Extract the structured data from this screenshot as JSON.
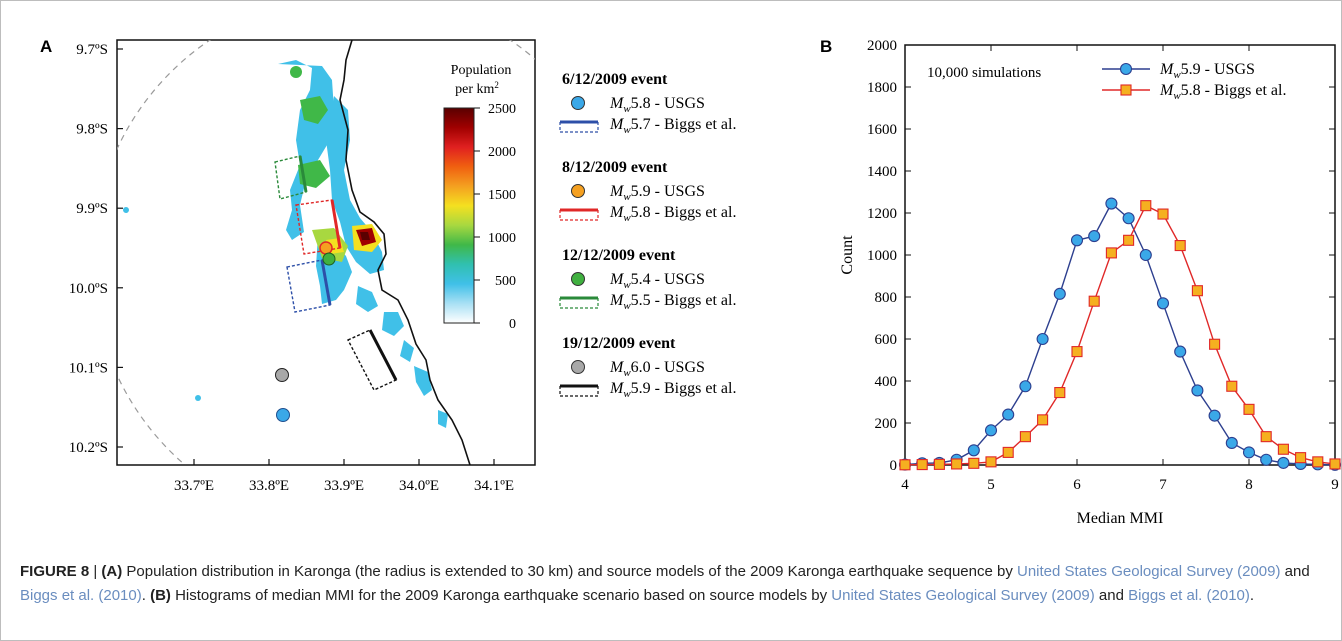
{
  "panel_a": {
    "label": "A",
    "lat_ticks": [
      "9.7ºS",
      "9.8ºS",
      "9.9ºS",
      "10.0ºS",
      "10.1ºS",
      "10.2ºS"
    ],
    "lon_ticks": [
      "33.7ºE",
      "33.8ºE",
      "33.9ºE",
      "34.0ºE",
      "34.1ºE"
    ],
    "colorbar": {
      "title_line1": "Population",
      "title_line2": "per km",
      "title_sup": "2",
      "ticks": [
        "2500",
        "2000",
        "1500",
        "1000",
        "500",
        "0"
      ],
      "colors": [
        "#5a0000",
        "#a00000",
        "#e02020",
        "#f06010",
        "#f4a020",
        "#f4e020",
        "#a8d840",
        "#40b848",
        "#30c0b0",
        "#40c0e8",
        "#a8e0f4",
        "#ffffff"
      ]
    },
    "events": [
      {
        "title": "6/12/2009 event",
        "usgs_mag": "5.8",
        "usgs_src": " - USGS",
        "biggs_mag": "5.7",
        "biggs_src": " - Biggs et al.",
        "dot_color": "#3aa8e8",
        "line_color": "#2d4fa8"
      },
      {
        "title": "8/12/2009 event",
        "usgs_mag": "5.9",
        "usgs_src": " - USGS",
        "biggs_mag": "5.8",
        "biggs_src": " - Biggs et al.",
        "dot_color": "#f5a020",
        "line_color": "#e02828"
      },
      {
        "title": "12/12/2009 event",
        "usgs_mag": "5.4",
        "usgs_src": " - USGS",
        "biggs_mag": "5.5",
        "biggs_src": " - Biggs et al.",
        "dot_color": "#40b040",
        "line_color": "#2a8a3a"
      },
      {
        "title": "19/12/2009 event",
        "usgs_mag": "6.0",
        "usgs_src": " - USGS",
        "biggs_mag": "5.9",
        "biggs_src": " - Biggs et al.",
        "dot_color": "#a8a8a8",
        "line_color": "#111111"
      }
    ]
  },
  "chart_data": {
    "type": "line",
    "label": "B",
    "annotation": "10,000 simulations",
    "xlabel": "Median MMI",
    "ylabel": "Count",
    "xlim": [
      4,
      9
    ],
    "ylim": [
      0,
      2000
    ],
    "x_ticks": [
      4,
      5,
      6,
      7,
      8,
      9
    ],
    "y_ticks": [
      0,
      200,
      400,
      600,
      800,
      1000,
      1200,
      1400,
      1600,
      1800,
      2000
    ],
    "legend_position": "top-right",
    "series": [
      {
        "name_mag": "5.9",
        "name_src": " - USGS",
        "marker": "circle",
        "line_color": "#2d3f8f",
        "marker_color": "#3aa8e8",
        "x": [
          4.0,
          4.2,
          4.4,
          4.6,
          4.8,
          5.0,
          5.2,
          5.4,
          5.6,
          5.8,
          6.0,
          6.2,
          6.4,
          6.6,
          6.8,
          7.0,
          7.2,
          7.4,
          7.6,
          7.8,
          8.0,
          8.2,
          8.4,
          8.6,
          8.8,
          9.0
        ],
        "y": [
          2,
          8,
          10,
          25,
          70,
          165,
          240,
          375,
          600,
          815,
          1070,
          1090,
          1245,
          1175,
          1000,
          770,
          540,
          355,
          235,
          105,
          60,
          25,
          10,
          5,
          3,
          1
        ]
      },
      {
        "name_mag": "5.8",
        "name_src": " - Biggs et al.",
        "marker": "square",
        "line_color": "#e02828",
        "marker_color": "#f5b020",
        "x": [
          4.0,
          4.2,
          4.4,
          4.6,
          4.8,
          5.0,
          5.2,
          5.4,
          5.6,
          5.8,
          6.0,
          6.2,
          6.4,
          6.6,
          6.8,
          7.0,
          7.2,
          7.4,
          7.6,
          7.8,
          8.0,
          8.2,
          8.4,
          8.6,
          8.8,
          9.0
        ],
        "y": [
          1,
          2,
          3,
          5,
          8,
          15,
          60,
          135,
          215,
          345,
          540,
          780,
          1010,
          1070,
          1235,
          1195,
          1045,
          830,
          575,
          375,
          265,
          135,
          75,
          35,
          15,
          5
        ]
      }
    ]
  },
  "caption": {
    "fig_label": "FIGURE 8",
    "sep": " | ",
    "a_tag": "(A)",
    "a_text": " Population distribution in Karonga (the radius is extended to 30 km) and source models of the 2009 Karonga earthquake sequence by ",
    "ref1": "United States Geological Survey (2009)",
    "and1": " and ",
    "ref2": "Biggs et al. (2010)",
    "b_tag_pre": ". ",
    "b_tag": "(B)",
    "b_text": " Histograms of median MMI for the 2009 Karonga earthquake scenario based on source models by ",
    "ref3": "United States Geological Survey (2009)",
    "and2": " and ",
    "ref4": "Biggs et al. (2010)",
    "end": "."
  }
}
